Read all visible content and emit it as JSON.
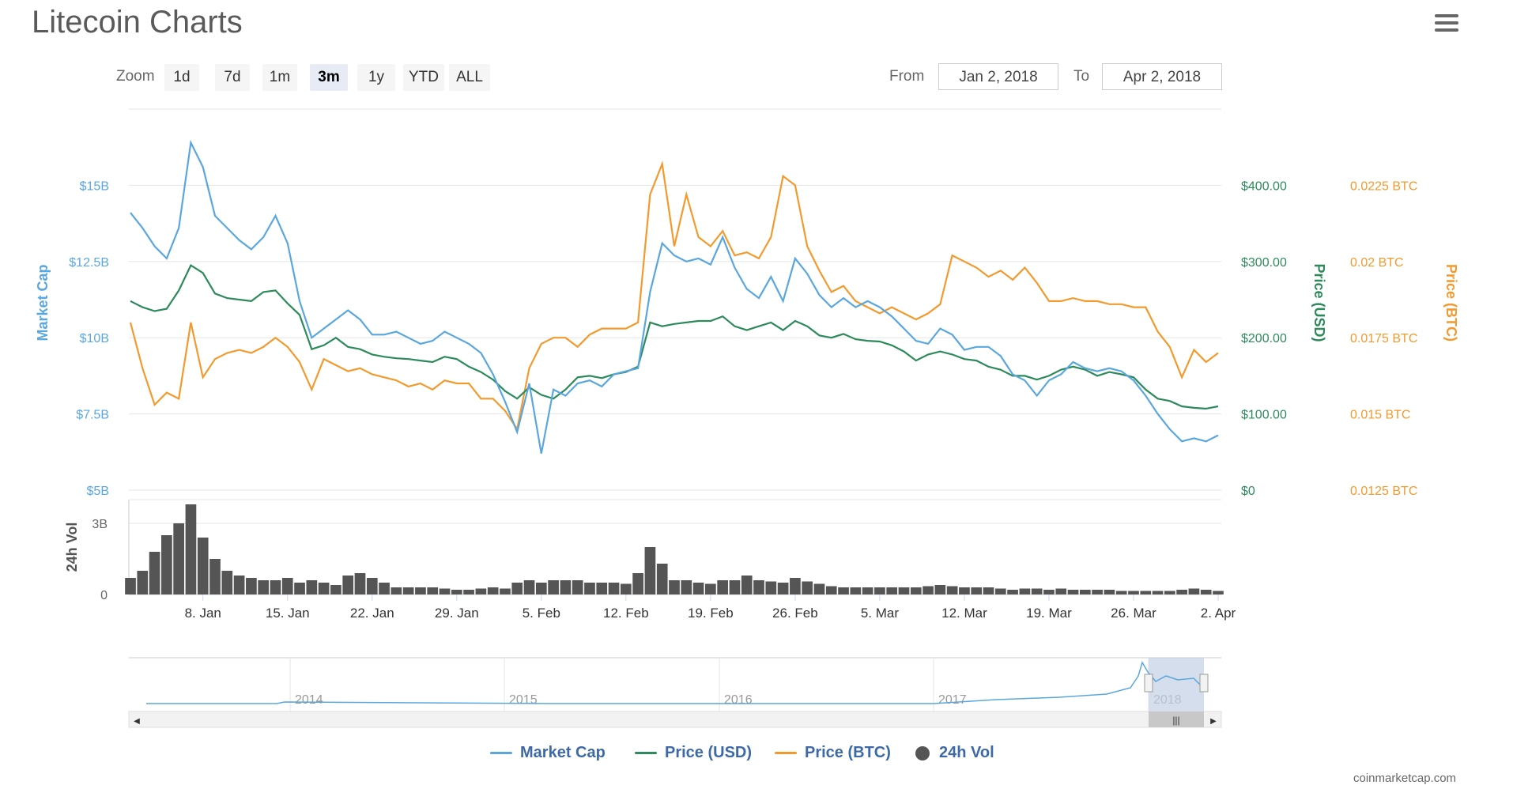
{
  "title": "Litecoin Charts",
  "zoom": {
    "label": "Zoom",
    "buttons": [
      "1d",
      "7d",
      "1m",
      "3m",
      "1y",
      "YTD",
      "ALL"
    ],
    "selected": "3m"
  },
  "range": {
    "from_label": "From",
    "from_value": "Jan 2, 2018",
    "to_label": "To",
    "to_value": "Apr 2, 2018"
  },
  "icons": {
    "menu": "hamburger-menu-icon",
    "scroll_left": "arrow-left-icon",
    "scroll_right": "arrow-right-icon",
    "scroll_grip": "grip-icon"
  },
  "colors": {
    "market_cap": "#5aa7de",
    "price_usd": "#2d8a5b",
    "price_btc": "#f29a2e",
    "volume": "#555555",
    "grid": "#e6e6e6",
    "navigator_mask": "#c3d0e6"
  },
  "chart_data": {
    "type": "line",
    "x_axis": {
      "ticks": [
        "8. Jan",
        "15. Jan",
        "22. Jan",
        "29. Jan",
        "5. Feb",
        "12. Feb",
        "19. Feb",
        "26. Feb",
        "5. Mar",
        "12. Mar",
        "19. Mar",
        "26. Mar",
        "2. Apr"
      ]
    },
    "y_axes": {
      "market_cap": {
        "title": "Market Cap",
        "ticks": [
          "$5B",
          "$7.5B",
          "$10B",
          "$12.5B",
          "$15B"
        ],
        "range": [
          5,
          17.5
        ]
      },
      "price_usd": {
        "title": "Price (USD)",
        "ticks": [
          "$0",
          "$100.00",
          "$200.00",
          "$300.00",
          "$400.00"
        ],
        "range": [
          0,
          500
        ]
      },
      "price_btc": {
        "title": "Price (BTC)",
        "ticks": [
          "0.0125 BTC",
          "0.015 BTC",
          "0.0175 BTC",
          "0.02 BTC",
          "0.0225 BTC"
        ],
        "range": [
          0.0125,
          0.025
        ]
      },
      "volume": {
        "title": "24h Vol",
        "ticks": [
          "0",
          "3B"
        ],
        "range": [
          0,
          4
        ]
      }
    },
    "dates": [
      "Jan 2",
      "Jan 3",
      "Jan 4",
      "Jan 5",
      "Jan 6",
      "Jan 7",
      "Jan 8",
      "Jan 9",
      "Jan 10",
      "Jan 11",
      "Jan 12",
      "Jan 13",
      "Jan 14",
      "Jan 15",
      "Jan 16",
      "Jan 17",
      "Jan 18",
      "Jan 19",
      "Jan 20",
      "Jan 21",
      "Jan 22",
      "Jan 23",
      "Jan 24",
      "Jan 25",
      "Jan 26",
      "Jan 27",
      "Jan 28",
      "Jan 29",
      "Jan 30",
      "Jan 31",
      "Feb 1",
      "Feb 2",
      "Feb 3",
      "Feb 4",
      "Feb 5",
      "Feb 6",
      "Feb 7",
      "Feb 8",
      "Feb 9",
      "Feb 10",
      "Feb 11",
      "Feb 12",
      "Feb 13",
      "Feb 14",
      "Feb 15",
      "Feb 16",
      "Feb 17",
      "Feb 18",
      "Feb 19",
      "Feb 20",
      "Feb 21",
      "Feb 22",
      "Feb 23",
      "Feb 24",
      "Feb 25",
      "Feb 26",
      "Feb 27",
      "Feb 28",
      "Mar 1",
      "Mar 2",
      "Mar 3",
      "Mar 4",
      "Mar 5",
      "Mar 6",
      "Mar 7",
      "Mar 8",
      "Mar 9",
      "Mar 10",
      "Mar 11",
      "Mar 12",
      "Mar 13",
      "Mar 14",
      "Mar 15",
      "Mar 16",
      "Mar 17",
      "Mar 18",
      "Mar 19",
      "Mar 20",
      "Mar 21",
      "Mar 22",
      "Mar 23",
      "Mar 24",
      "Mar 25",
      "Mar 26",
      "Mar 27",
      "Mar 28",
      "Mar 29",
      "Mar 30",
      "Mar 31",
      "Apr 1",
      "Apr 2"
    ],
    "series": [
      {
        "name": "Market Cap",
        "unit": "billion USD",
        "values": [
          14.1,
          13.6,
          13.0,
          12.6,
          13.6,
          16.4,
          15.6,
          14.0,
          13.6,
          13.2,
          12.9,
          13.3,
          14.0,
          13.1,
          11.2,
          10.0,
          10.3,
          10.6,
          10.9,
          10.6,
          10.1,
          10.1,
          10.2,
          10.0,
          9.8,
          9.9,
          10.2,
          10.0,
          9.8,
          9.5,
          8.8,
          7.9,
          6.9,
          8.5,
          6.2,
          8.3,
          8.1,
          8.5,
          8.6,
          8.4,
          8.8,
          8.9,
          9.0,
          11.5,
          13.1,
          12.7,
          12.5,
          12.6,
          12.4,
          13.3,
          12.3,
          11.6,
          11.3,
          12.0,
          11.2,
          12.6,
          12.1,
          11.4,
          11.0,
          11.3,
          11.0,
          11.2,
          11.0,
          10.7,
          10.3,
          9.9,
          9.8,
          10.3,
          10.1,
          9.6,
          9.7,
          9.7,
          9.4,
          8.8,
          8.6,
          8.1,
          8.6,
          8.8,
          9.2,
          9.0,
          8.9,
          9.0,
          8.9,
          8.6,
          8.1,
          7.5,
          7.0,
          6.6,
          6.7,
          6.6,
          6.8
        ]
      },
      {
        "name": "Price (USD)",
        "unit": "USD",
        "values": [
          248,
          240,
          235,
          238,
          262,
          295,
          285,
          258,
          252,
          250,
          248,
          260,
          262,
          245,
          230,
          185,
          190,
          200,
          188,
          185,
          178,
          175,
          173,
          172,
          170,
          168,
          175,
          172,
          162,
          155,
          145,
          130,
          120,
          135,
          125,
          120,
          132,
          148,
          150,
          147,
          152,
          155,
          162,
          220,
          215,
          218,
          220,
          222,
          222,
          228,
          215,
          210,
          215,
          220,
          210,
          222,
          215,
          203,
          200,
          205,
          198,
          196,
          195,
          190,
          182,
          170,
          178,
          182,
          178,
          172,
          170,
          162,
          158,
          150,
          150,
          145,
          150,
          158,
          162,
          158,
          150,
          155,
          152,
          148,
          132,
          120,
          117,
          110,
          108,
          107,
          110
        ]
      },
      {
        "name": "Price (BTC)",
        "unit": "BTC",
        "values": [
          0.018,
          0.0165,
          0.0153,
          0.0157,
          0.0155,
          0.018,
          0.0162,
          0.0168,
          0.017,
          0.0171,
          0.017,
          0.0172,
          0.0175,
          0.0172,
          0.0167,
          0.0158,
          0.0168,
          0.0166,
          0.0164,
          0.0165,
          0.0163,
          0.0162,
          0.0161,
          0.0159,
          0.016,
          0.0158,
          0.0161,
          0.016,
          0.016,
          0.0155,
          0.0155,
          0.0151,
          0.0145,
          0.0165,
          0.0173,
          0.0175,
          0.0175,
          0.0172,
          0.0176,
          0.0178,
          0.0178,
          0.0178,
          0.018,
          0.0222,
          0.0232,
          0.0205,
          0.0222,
          0.0208,
          0.0205,
          0.021,
          0.0202,
          0.0203,
          0.0201,
          0.0208,
          0.0228,
          0.0225,
          0.0205,
          0.0197,
          0.019,
          0.0192,
          0.0187,
          0.0185,
          0.0183,
          0.0185,
          0.0183,
          0.0181,
          0.0183,
          0.0186,
          0.0202,
          0.02,
          0.0198,
          0.0195,
          0.0197,
          0.0194,
          0.0198,
          0.0193,
          0.0187,
          0.0187,
          0.0188,
          0.0187,
          0.0187,
          0.0186,
          0.0186,
          0.0185,
          0.0185,
          0.0177,
          0.0172,
          0.0162,
          0.0171,
          0.0167,
          0.017
        ]
      },
      {
        "name": "24h Vol",
        "unit": "billion USD",
        "values": [
          0.7,
          1.0,
          1.8,
          2.5,
          3.0,
          3.8,
          2.4,
          1.5,
          1.0,
          0.8,
          0.7,
          0.6,
          0.6,
          0.7,
          0.5,
          0.6,
          0.5,
          0.4,
          0.8,
          0.9,
          0.7,
          0.5,
          0.3,
          0.3,
          0.3,
          0.3,
          0.25,
          0.2,
          0.2,
          0.25,
          0.3,
          0.25,
          0.5,
          0.6,
          0.5,
          0.6,
          0.6,
          0.6,
          0.5,
          0.5,
          0.5,
          0.45,
          0.9,
          2.0,
          1.3,
          0.6,
          0.6,
          0.5,
          0.45,
          0.6,
          0.6,
          0.8,
          0.6,
          0.55,
          0.5,
          0.7,
          0.55,
          0.45,
          0.35,
          0.3,
          0.3,
          0.3,
          0.3,
          0.3,
          0.3,
          0.3,
          0.35,
          0.4,
          0.35,
          0.3,
          0.3,
          0.3,
          0.25,
          0.2,
          0.25,
          0.25,
          0.2,
          0.25,
          0.2,
          0.2,
          0.2,
          0.2,
          0.15,
          0.15,
          0.15,
          0.15,
          0.15,
          0.2,
          0.25,
          0.2,
          0.15
        ]
      }
    ],
    "navigator": {
      "years": [
        "2014",
        "2015",
        "2016",
        "2017",
        "2018"
      ]
    },
    "legend": [
      "Market Cap",
      "Price (USD)",
      "Price (BTC)",
      "24h Vol"
    ],
    "grid": true,
    "legend_position": "bottom"
  },
  "credit": "coinmarketcap.com"
}
